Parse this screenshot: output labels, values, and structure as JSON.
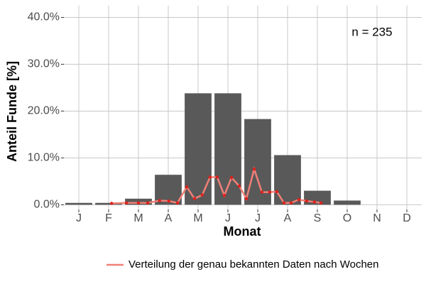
{
  "chart_data": {
    "type": "bar",
    "x_label": "Monat",
    "y_label": "Anteil Funde [%]",
    "annotation": "n = 235",
    "categories": [
      "J",
      "F",
      "M",
      "A",
      "M",
      "J",
      "J",
      "A",
      "S",
      "O",
      "N",
      "D"
    ],
    "values": [
      0.4,
      0.4,
      1.3,
      6.4,
      23.8,
      23.8,
      18.3,
      10.6,
      3.0,
      0.9,
      0,
      0
    ],
    "color": "#595959",
    "xlim": [
      0.5,
      12.5
    ],
    "ylim": [
      -1,
      42.5
    ],
    "yticks": [
      {
        "value": 0,
        "label": "0.0%"
      },
      {
        "value": 10,
        "label": "10.0%"
      },
      {
        "value": 20,
        "label": "20.0%"
      },
      {
        "value": 30,
        "label": "30.0%"
      },
      {
        "value": 40,
        "label": "40.0%"
      }
    ],
    "grid": true,
    "legend": "bottom",
    "overlay": {
      "type": "line",
      "name": "Verteilung der genau bekannten Daten nach Wochen",
      "color": "#f08077",
      "marker_color": "#e0201b",
      "x": [
        2.1,
        2.6,
        3.0,
        3.31,
        3.71,
        4.02,
        4.31,
        4.62,
        4.88,
        5.14,
        5.4,
        5.64,
        5.88,
        6.12,
        6.38,
        6.62,
        6.88,
        7.14,
        7.4,
        7.64,
        7.88,
        8.12,
        8.38,
        8.64,
        8.9,
        9.12
      ],
      "values": [
        0.3,
        0.4,
        0.4,
        0.4,
        0.9,
        0.8,
        0.4,
        3.8,
        1.3,
        2.1,
        5.9,
        5.9,
        2.0,
        5.8,
        4.0,
        1.3,
        7.6,
        2.7,
        2.7,
        2.8,
        0.4,
        0.4,
        1.1,
        0.8,
        0.6,
        0.4
      ]
    }
  }
}
